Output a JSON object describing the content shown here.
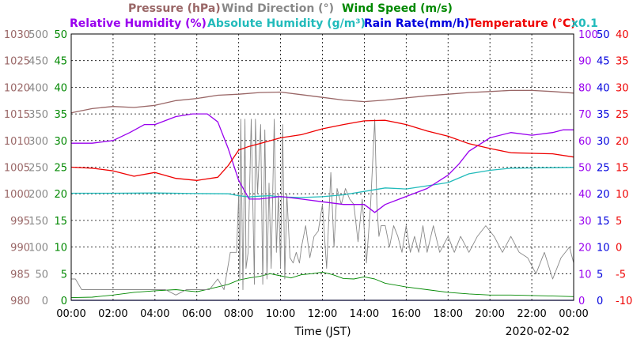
{
  "chart_data": {
    "type": "line",
    "date": "2020-02-02",
    "xlabel": "Time (JST)",
    "x_ticks": [
      "00:00",
      "02:00",
      "04:00",
      "06:00",
      "08:00",
      "10:00",
      "12:00",
      "14:00",
      "16:00",
      "18:00",
      "20:00",
      "22:00",
      "00:00"
    ],
    "x_range_hours": [
      0,
      24
    ],
    "grid": true,
    "legend_row1": [
      {
        "label": "Pressure (hPa)",
        "color": "#996666"
      },
      {
        "label": "Wind Direction (°)",
        "color": "#888888"
      },
      {
        "label": "Wind Speed (m/s)",
        "color": "#008800"
      }
    ],
    "legend_row2": [
      {
        "label": "Relative Humidity (%)",
        "color": "#9900ee"
      },
      {
        "label": "Absolute Humidity (g/m³)",
        "color": "#22bbbb"
      },
      {
        "label": "Rain Rate(mm/h)",
        "color": "#0000dd"
      },
      {
        "label": "Temperature (°C)",
        "color": "#ee0000"
      },
      {
        "label": "x0.1",
        "color": "#22bbbb"
      }
    ],
    "axes": {
      "pressure": {
        "range": [
          980,
          1030
        ],
        "ticks": [
          "1030",
          "1025",
          "1020",
          "1015",
          "1010",
          "1005",
          "1000",
          "995",
          "990",
          "985",
          "980"
        ],
        "color": "#996666"
      },
      "wind_direction": {
        "range": [
          0,
          500
        ],
        "ticks": [
          "500",
          "450",
          "400",
          "350",
          "300",
          "250",
          "200",
          "150",
          "100",
          "50",
          "0"
        ],
        "color": "#888888"
      },
      "wind_speed": {
        "range": [
          0,
          50
        ],
        "ticks": [
          "50",
          "45",
          "40",
          "35",
          "30",
          "25",
          "20",
          "15",
          "10",
          "5",
          "0"
        ],
        "color": "#008800"
      },
      "relative_humidity": {
        "range": [
          0,
          100
        ],
        "ticks": [
          "100",
          "90",
          "80",
          "70",
          "60",
          "50",
          "40",
          "30",
          "20",
          "10",
          "0"
        ],
        "color": "#9900ee"
      },
      "rain_rate": {
        "range": [
          0,
          50
        ],
        "ticks": [
          "50",
          "45",
          "40",
          "35",
          "30",
          "25",
          "20",
          "15",
          "10",
          "5",
          "0"
        ],
        "color": "#0000dd"
      },
      "temperature": {
        "range": [
          -10,
          40
        ],
        "ticks": [
          "40",
          "35",
          "30",
          "25",
          "20",
          "15",
          "10",
          "5",
          "0",
          "-5",
          "-10"
        ],
        "color": "#ee0000"
      }
    },
    "series": [
      {
        "name": "Pressure (hPa)",
        "axis": "pressure",
        "color": "#996666",
        "x": [
          0,
          1,
          2,
          3,
          4,
          5,
          6,
          7,
          8,
          9,
          10,
          11,
          12,
          13,
          14,
          15,
          16,
          17,
          18,
          19,
          20,
          21,
          22,
          23,
          24
        ],
        "y": [
          1015.2,
          1016.0,
          1016.4,
          1016.2,
          1016.6,
          1017.5,
          1017.9,
          1018.5,
          1018.7,
          1019.0,
          1019.1,
          1018.6,
          1018.1,
          1017.6,
          1017.3,
          1017.6,
          1018.0,
          1018.4,
          1018.7,
          1019.0,
          1019.2,
          1019.4,
          1019.4,
          1019.2,
          1018.9
        ]
      },
      {
        "name": "Relative Humidity (%)",
        "axis": "relative_humidity",
        "color": "#9900ee",
        "x": [
          0,
          1,
          2,
          2.8,
          3.5,
          4,
          5,
          5.8,
          6.5,
          7,
          7.5,
          8,
          8.5,
          9,
          10,
          11,
          12,
          13,
          14,
          14.5,
          15,
          16,
          17,
          18,
          18.5,
          19,
          20,
          21,
          22,
          23,
          23.5,
          24
        ],
        "y": [
          59,
          59,
          60,
          63,
          66,
          66,
          69,
          70,
          70,
          67,
          57,
          45,
          38,
          38,
          39,
          38,
          37,
          36,
          36,
          33,
          36,
          39,
          42,
          47,
          51,
          56,
          61,
          63,
          62,
          63,
          64,
          64
        ]
      },
      {
        "name": "Absolute Humidity (g/m³)",
        "axis": "relative_humidity",
        "color": "#22bbbb",
        "scale_note": "x0.1",
        "x": [
          0,
          2,
          4,
          6,
          7.5,
          8,
          8.5,
          9,
          9.5,
          10,
          11,
          12,
          13,
          14,
          15,
          16,
          17,
          18,
          19,
          20,
          21,
          22,
          23,
          24
        ],
        "y": [
          40.2,
          40.2,
          40.3,
          40.1,
          40.0,
          39.3,
          38.8,
          39.1,
          39.3,
          38.8,
          38.6,
          38.9,
          39.6,
          40.9,
          42.2,
          41.8,
          43.0,
          44.2,
          47.5,
          48.8,
          49.6,
          49.7,
          49.8,
          49.9
        ]
      },
      {
        "name": "Temperature (°C)",
        "axis": "temperature",
        "color": "#ee0000",
        "x": [
          0,
          1,
          2,
          3,
          4,
          5,
          6,
          7,
          7.5,
          8,
          8.5,
          9,
          10,
          11,
          12,
          13,
          14,
          15,
          16,
          17,
          18,
          19,
          20,
          21,
          22,
          23,
          24
        ],
        "y": [
          15.0,
          14.8,
          14.3,
          13.3,
          14.0,
          12.9,
          12.5,
          13.1,
          15.3,
          18.2,
          18.9,
          19.4,
          20.5,
          21.1,
          22.2,
          23.0,
          23.7,
          23.8,
          23.0,
          21.8,
          20.8,
          19.4,
          18.5,
          17.7,
          17.6,
          17.5,
          16.9
        ]
      },
      {
        "name": "Wind Direction (°)",
        "axis": "wind_direction",
        "color": "#888888",
        "x": [
          0,
          0.2,
          0.5,
          1,
          1.5,
          2,
          2.5,
          3,
          3.5,
          4,
          4.5,
          5,
          5.5,
          6,
          6.3,
          6.6,
          7,
          7.3,
          7.6,
          7.9,
          8,
          8.05,
          8.1,
          8.2,
          8.3,
          8.35,
          8.45,
          8.6,
          8.75,
          8.8,
          8.9,
          9.05,
          9.15,
          9.25,
          9.35,
          9.45,
          9.55,
          9.7,
          9.8,
          9.9,
          10.0,
          10.1,
          10.2,
          10.3,
          10.45,
          10.6,
          10.75,
          10.9,
          11.0,
          11.2,
          11.4,
          11.6,
          11.8,
          12.0,
          12.2,
          12.4,
          12.55,
          12.7,
          12.9,
          13.1,
          13.3,
          13.5,
          13.7,
          13.9,
          14.1,
          14.3,
          14.5,
          14.6,
          14.7,
          14.8,
          15.0,
          15.2,
          15.4,
          15.6,
          15.8,
          16.0,
          16.2,
          16.4,
          16.6,
          16.8,
          17.0,
          17.3,
          17.6,
          18.0,
          18.3,
          18.6,
          19.0,
          19.4,
          19.8,
          20.2,
          20.6,
          21.0,
          21.4,
          21.8,
          22.2,
          22.6,
          23.0,
          23.4,
          23.8,
          24
        ],
        "y": [
          40,
          40,
          20,
          20,
          20,
          20,
          20,
          20,
          20,
          20,
          20,
          10,
          20,
          20,
          20,
          20,
          40,
          20,
          90,
          90,
          200,
          40,
          340,
          20,
          340,
          60,
          90,
          340,
          30,
          340,
          200,
          330,
          30,
          320,
          40,
          220,
          60,
          340,
          90,
          200,
          60,
          330,
          40,
          200,
          80,
          70,
          90,
          70,
          100,
          140,
          80,
          120,
          130,
          180,
          60,
          240,
          100,
          210,
          180,
          210,
          190,
          180,
          110,
          190,
          70,
          180,
          340,
          180,
          120,
          140,
          140,
          100,
          140,
          120,
          90,
          140,
          90,
          120,
          90,
          140,
          90,
          140,
          90,
          120,
          90,
          120,
          90,
          120,
          140,
          120,
          90,
          120,
          90,
          80,
          50,
          90,
          40,
          80,
          100,
          70
        ]
      },
      {
        "name": "Wind Speed (m/s)",
        "axis": "wind_speed",
        "color": "#008800",
        "x": [
          0,
          1,
          2,
          3,
          4,
          5,
          6,
          7,
          7.5,
          8,
          8.5,
          9,
          9.5,
          10,
          10.5,
          11,
          11.5,
          12,
          12.5,
          13,
          13.5,
          14,
          14.5,
          15,
          16,
          17,
          18,
          19,
          20,
          21,
          22,
          23,
          24
        ],
        "y": [
          0.5,
          0.6,
          1.0,
          1.5,
          1.8,
          2.0,
          1.6,
          2.5,
          3.0,
          3.8,
          4.2,
          4.5,
          5.0,
          4.6,
          4.2,
          4.8,
          5.0,
          5.3,
          4.8,
          4.1,
          4.0,
          4.4,
          4.0,
          3.2,
          2.5,
          2.0,
          1.5,
          1.2,
          1.0,
          1.0,
          0.9,
          0.8,
          0.7
        ]
      },
      {
        "name": "Rain Rate(mm/h)",
        "axis": "rain_rate",
        "color": "#0000dd",
        "x": [
          0,
          24
        ],
        "y": [
          0,
          0
        ]
      }
    ]
  }
}
